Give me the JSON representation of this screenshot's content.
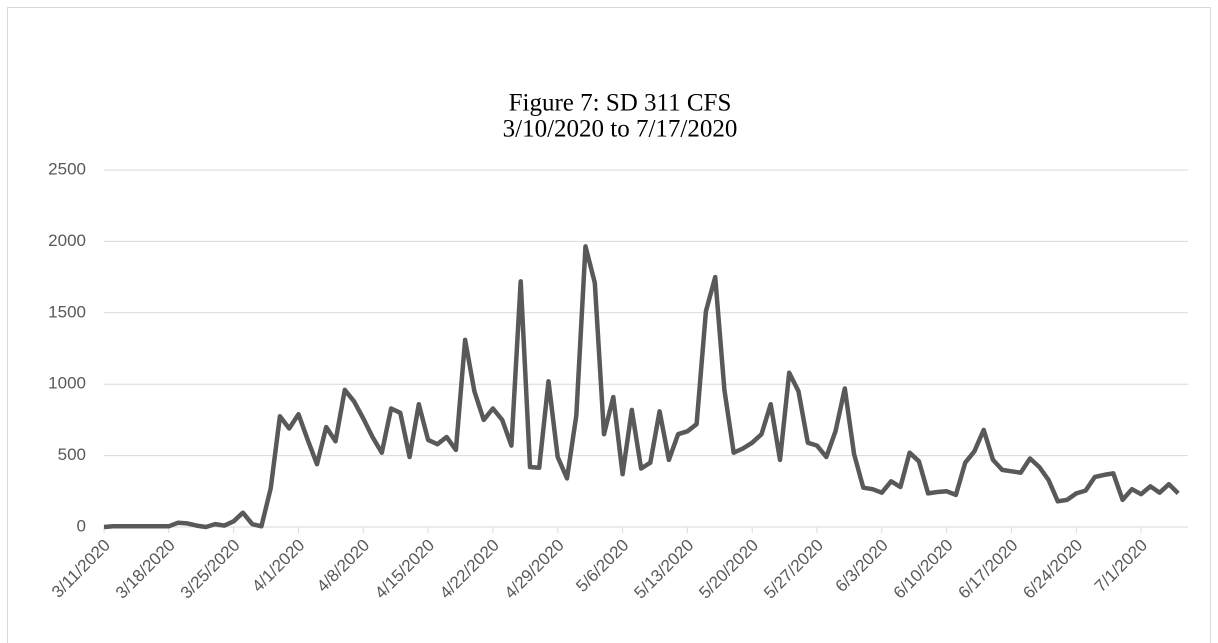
{
  "chart_data": {
    "type": "line",
    "title": "Figure 7: SD 311 CFS",
    "subtitle": "3/10/2020 to 7/17/2020",
    "color": "#595959",
    "grid": true,
    "ylim": [
      0,
      2500
    ],
    "yticks": [
      0,
      500,
      1000,
      1500,
      2000,
      2500
    ],
    "categories": [
      "3/11/2020",
      null,
      null,
      null,
      null,
      null,
      null,
      "3/18/2020",
      null,
      null,
      null,
      null,
      null,
      null,
      "3/25/2020",
      null,
      null,
      null,
      null,
      null,
      null,
      "4/1/2020",
      null,
      null,
      null,
      null,
      null,
      null,
      "4/8/2020",
      null,
      null,
      null,
      null,
      null,
      null,
      "4/15/2020",
      null,
      null,
      null,
      null,
      null,
      null,
      "4/22/2020",
      null,
      null,
      null,
      null,
      null,
      null,
      "4/29/2020",
      null,
      null,
      null,
      null,
      null,
      null,
      "5/6/2020",
      null,
      null,
      null,
      null,
      null,
      null,
      "5/13/2020",
      null,
      null,
      null,
      null,
      null,
      null,
      "5/20/2020",
      null,
      null,
      null,
      null,
      null,
      null,
      "5/27/2020",
      null,
      null,
      null,
      null,
      null,
      null,
      "6/3/2020",
      null,
      null,
      null,
      null,
      null,
      null,
      "6/10/2020",
      null,
      null,
      null,
      null,
      null,
      null,
      "6/17/2020",
      null,
      null,
      null,
      null,
      null,
      null,
      "6/24/2020",
      null,
      null,
      null,
      null,
      null,
      null,
      "7/1/2020",
      null,
      null,
      null,
      null
    ],
    "values": [
      0,
      5,
      5,
      5,
      5,
      5,
      5,
      5,
      30,
      25,
      10,
      0,
      20,
      10,
      40,
      100,
      20,
      5,
      270,
      775,
      690,
      790,
      610,
      440,
      700,
      600,
      960,
      880,
      760,
      630,
      520,
      830,
      800,
      490,
      860,
      610,
      580,
      630,
      540,
      1310,
      950,
      750,
      830,
      750,
      570,
      1720,
      420,
      415,
      1020,
      490,
      340,
      780,
      1965,
      1710,
      650,
      910,
      370,
      820,
      410,
      450,
      810,
      470,
      650,
      670,
      720,
      1510,
      1750,
      960,
      520,
      550,
      590,
      650,
      860,
      470,
      1080,
      950,
      590,
      570,
      490,
      670,
      970,
      510,
      275,
      265,
      240,
      320,
      280,
      520,
      460,
      235,
      245,
      250,
      225,
      450,
      530,
      680,
      470,
      400,
      390,
      380,
      480,
      420,
      330,
      180,
      190,
      235,
      255,
      350,
      365,
      375,
      190,
      265,
      230,
      285,
      240,
      300,
      235
    ]
  }
}
